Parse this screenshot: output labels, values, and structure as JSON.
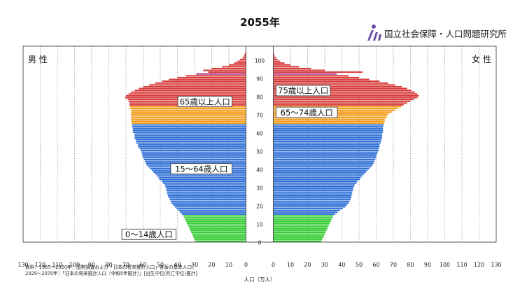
{
  "title": "2055年",
  "logo": {
    "text": "国立社会保障・人口問題研究所",
    "icon": "ipss-logo-icon"
  },
  "source_lines": [
    "資料：1965〜2020年：国勢調査および「日本の将来推計人口」各版の基準人口。",
    "2025〜2070年：「日本の将来推計人口（令和5年推計）」[出生中位(死亡中位)推計]"
  ],
  "colors": {
    "age_0_14": "#33cc33",
    "age_15_64": "#2f6fd6",
    "age_65_74": "#f39c1a",
    "age_75_plus": "#d83a3a",
    "mark": "#b03b8c"
  },
  "chart_data": {
    "type": "bar",
    "orientation": "horizontal-pyramid",
    "title": "2055年",
    "left_label": "男 性",
    "right_label": "女 性",
    "xlabel": "人口（万人）",
    "x_ticks": [
      "130",
      "120",
      "110",
      "100",
      "90",
      "80",
      "70",
      "60",
      "50",
      "40",
      "30",
      "20",
      "10",
      "0",
      "0",
      "10",
      "20",
      "30",
      "40",
      "50",
      "60",
      "70",
      "80",
      "90",
      "100",
      "110",
      "120",
      "130"
    ],
    "age_ticks": [
      "0",
      "10",
      "20",
      "30",
      "40",
      "50",
      "60",
      "70",
      "80",
      "90",
      "100"
    ],
    "xlim": [
      0,
      130
    ],
    "age_range": [
      0,
      104
    ],
    "grid": true,
    "age_groups": [
      {
        "label": "0〜14歳人口",
        "range": [
          0,
          14
        ]
      },
      {
        "label": "15〜64歳人口",
        "range": [
          15,
          64
        ]
      },
      {
        "label": "65歳以上人口",
        "range": [
          65,
          104
        ]
      },
      {
        "label": "65〜74歳人口",
        "range": [
          65,
          74
        ]
      },
      {
        "label": "75歳以上人口",
        "range": [
          75,
          104
        ]
      }
    ],
    "series": [
      {
        "name": "男 性",
        "ages_from": 0,
        "values": [
          29.5,
          30,
          30.5,
          31,
          31.5,
          32,
          32.5,
          33,
          33.5,
          34,
          34.5,
          35,
          35.5,
          36,
          36.5,
          37.5,
          38.5,
          39.5,
          40.5,
          41.5,
          42.5,
          43.5,
          44,
          44.5,
          45,
          45.5,
          46,
          46,
          46.5,
          46.5,
          47,
          47.5,
          48.5,
          49,
          50.5,
          51,
          52,
          53,
          54,
          55,
          56,
          57,
          58,
          58.5,
          59,
          59.5,
          60,
          60.5,
          60.5,
          61,
          61.5,
          62,
          63,
          63,
          64,
          64,
          64.5,
          65,
          65,
          65,
          66,
          66,
          66,
          66.5,
          66.5,
          66.5,
          67,
          67,
          67,
          67,
          67,
          67,
          67,
          67.5,
          67.5,
          68,
          68,
          68.5,
          69,
          70.5,
          70,
          68.5,
          67,
          65,
          62.5,
          60,
          56.5,
          53,
          49,
          45,
          40,
          35,
          29,
          22,
          25,
          20,
          14,
          10,
          7,
          5,
          3.5,
          2,
          1.2,
          0.7,
          0.4
        ]
      },
      {
        "name": "女 性",
        "ages_from": 0,
        "values": [
          28,
          28.5,
          29,
          29.5,
          30,
          30.5,
          31,
          31.5,
          32,
          32.5,
          33,
          33.5,
          34,
          34.5,
          35,
          36,
          37.5,
          39,
          40.5,
          42,
          43,
          44,
          44.5,
          45,
          45.5,
          45.5,
          46,
          46,
          46.5,
          46.5,
          47,
          47.5,
          48.5,
          49,
          50.5,
          51,
          52,
          53,
          54,
          55,
          56,
          57,
          58,
          58.5,
          59,
          59.5,
          60,
          60,
          60.5,
          61,
          61.5,
          61.5,
          62,
          62,
          62.5,
          63,
          63,
          63.5,
          63.5,
          63.5,
          64,
          64,
          64,
          64,
          64.5,
          64.5,
          65,
          65,
          66,
          66.5,
          67,
          69,
          71,
          72.5,
          74.5,
          76,
          78,
          80,
          82,
          84,
          85,
          84,
          82.5,
          80.5,
          78,
          75,
          71,
          67,
          62,
          56,
          50,
          44,
          37,
          52,
          30,
          22,
          15,
          10,
          6.5,
          4,
          2.5,
          1.5,
          0.8,
          0.4,
          0.2
        ]
      }
    ]
  }
}
